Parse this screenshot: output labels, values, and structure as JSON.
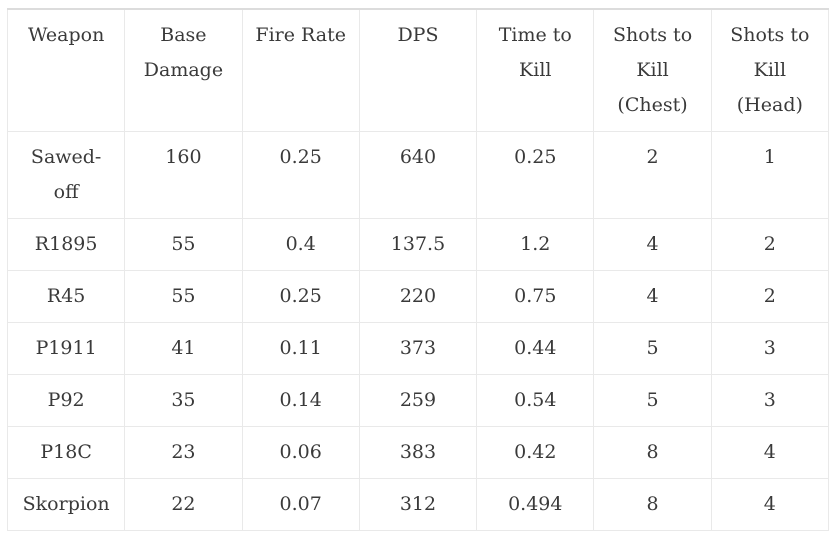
{
  "colors": {
    "text": "#3a3a3a",
    "border": "#e9e9e9",
    "border_top": "#dcdcdc",
    "background": "#ffffff"
  },
  "chart_data": {
    "type": "table",
    "columns": [
      "Weapon",
      "Base Damage",
      "Fire Rate",
      "DPS",
      "Time to Kill",
      "Shots to Kill (Chest)",
      "Shots to Kill (Head)"
    ],
    "rows": [
      [
        "Sawed-off",
        "160",
        "0.25",
        "640",
        "0.25",
        "2",
        "1"
      ],
      [
        "R1895",
        "55",
        "0.4",
        "137.5",
        "1.2",
        "4",
        "2"
      ],
      [
        "R45",
        "55",
        "0.25",
        "220",
        "0.75",
        "4",
        "2"
      ],
      [
        "P1911",
        "41",
        "0.11",
        "373",
        "0.44",
        "5",
        "3"
      ],
      [
        "P92",
        "35",
        "0.14",
        "259",
        "0.54",
        "5",
        "3"
      ],
      [
        "P18C",
        "23",
        "0.06",
        "383",
        "0.42",
        "8",
        "4"
      ],
      [
        "Skorpion",
        "22",
        "0.07",
        "312",
        "0.494",
        "8",
        "4"
      ]
    ]
  },
  "table": {
    "header_display": [
      "Weapon",
      "Base\nDamage",
      "Fire Rate",
      "DPS",
      "Time to\nKill",
      "Shots to\nKill\n(Chest)",
      "Shots to\nKill\n(Head)"
    ],
    "weapon_display": [
      "Sawed-\noff",
      "R1895",
      "R45",
      "P1911",
      "P92",
      "P18C",
      "Skorpion"
    ]
  }
}
